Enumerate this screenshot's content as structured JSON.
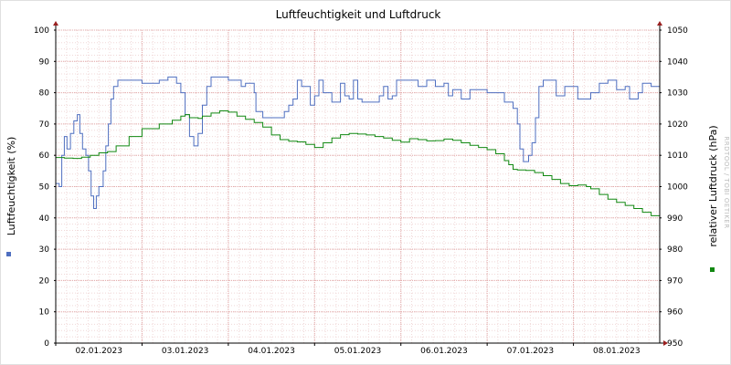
{
  "chart_data": {
    "type": "line",
    "title": "Luftfeuchtigkeit und Luftdruck",
    "watermark": "RRDTOOL / TOBI OETIKER",
    "x_ticks": [
      "02.01.2023",
      "03.01.2023",
      "04.01.2023",
      "05.01.2023",
      "06.01.2023",
      "07.01.2023",
      "08.01.2023"
    ],
    "x_range": [
      0.0,
      7.0
    ],
    "grid": true,
    "left_axis": {
      "label": "Luftfeuchtigkeit (%)",
      "range": [
        0,
        100
      ],
      "ticks": [
        "0",
        "10",
        "20",
        "30",
        "40",
        "50",
        "60",
        "70",
        "80",
        "90",
        "100"
      ]
    },
    "right_axis": {
      "label": "relativer Luftdruck (hPa)",
      "range": [
        950,
        1050
      ],
      "ticks": [
        "950",
        "960",
        "970",
        "980",
        "990",
        "1000",
        "1010",
        "1020",
        "1030",
        "1040",
        "1050"
      ]
    },
    "series": [
      {
        "axis": "left",
        "color": "#4f6fc0",
        "values": [
          [
            0.0,
            51
          ],
          [
            0.04,
            50
          ],
          [
            0.07,
            60
          ],
          [
            0.1,
            66
          ],
          [
            0.13,
            62
          ],
          [
            0.17,
            67
          ],
          [
            0.21,
            71
          ],
          [
            0.25,
            73
          ],
          [
            0.28,
            67
          ],
          [
            0.31,
            62
          ],
          [
            0.35,
            60
          ],
          [
            0.38,
            55
          ],
          [
            0.41,
            47
          ],
          [
            0.44,
            43
          ],
          [
            0.47,
            47
          ],
          [
            0.5,
            50
          ],
          [
            0.55,
            55
          ],
          [
            0.58,
            63
          ],
          [
            0.61,
            70
          ],
          [
            0.64,
            78
          ],
          [
            0.67,
            82
          ],
          [
            0.72,
            84
          ],
          [
            0.8,
            84
          ],
          [
            1.0,
            83
          ],
          [
            1.2,
            84
          ],
          [
            1.3,
            85
          ],
          [
            1.4,
            83
          ],
          [
            1.45,
            80
          ],
          [
            1.5,
            73
          ],
          [
            1.55,
            66
          ],
          [
            1.6,
            63
          ],
          [
            1.65,
            67
          ],
          [
            1.7,
            76
          ],
          [
            1.75,
            82
          ],
          [
            1.8,
            85
          ],
          [
            2.0,
            84
          ],
          [
            2.1,
            84
          ],
          [
            2.15,
            82
          ],
          [
            2.2,
            83
          ],
          [
            2.3,
            80
          ],
          [
            2.32,
            74
          ],
          [
            2.4,
            72
          ],
          [
            2.6,
            72
          ],
          [
            2.65,
            74
          ],
          [
            2.7,
            76
          ],
          [
            2.75,
            78
          ],
          [
            2.8,
            84
          ],
          [
            2.85,
            82
          ],
          [
            2.95,
            76
          ],
          [
            3.0,
            79
          ],
          [
            3.05,
            84
          ],
          [
            3.1,
            80
          ],
          [
            3.2,
            77
          ],
          [
            3.3,
            83
          ],
          [
            3.35,
            79
          ],
          [
            3.4,
            78
          ],
          [
            3.45,
            84
          ],
          [
            3.5,
            78
          ],
          [
            3.55,
            77
          ],
          [
            3.65,
            77
          ],
          [
            3.75,
            79
          ],
          [
            3.8,
            82
          ],
          [
            3.85,
            78
          ],
          [
            3.9,
            79
          ],
          [
            3.95,
            84
          ],
          [
            4.1,
            84
          ],
          [
            4.2,
            82
          ],
          [
            4.3,
            84
          ],
          [
            4.4,
            82
          ],
          [
            4.5,
            83
          ],
          [
            4.55,
            79
          ],
          [
            4.6,
            81
          ],
          [
            4.7,
            78
          ],
          [
            4.8,
            81
          ],
          [
            5.0,
            80
          ],
          [
            5.1,
            80
          ],
          [
            5.2,
            77
          ],
          [
            5.3,
            75
          ],
          [
            5.35,
            70
          ],
          [
            5.38,
            62
          ],
          [
            5.42,
            58
          ],
          [
            5.48,
            60
          ],
          [
            5.52,
            64
          ],
          [
            5.56,
            72
          ],
          [
            5.6,
            82
          ],
          [
            5.65,
            84
          ],
          [
            5.75,
            84
          ],
          [
            5.8,
            79
          ],
          [
            5.9,
            82
          ],
          [
            6.0,
            82
          ],
          [
            6.05,
            78
          ],
          [
            6.2,
            80
          ],
          [
            6.3,
            83
          ],
          [
            6.4,
            84
          ],
          [
            6.5,
            81
          ],
          [
            6.6,
            82
          ],
          [
            6.65,
            78
          ],
          [
            6.75,
            80
          ],
          [
            6.8,
            83
          ],
          [
            6.9,
            82
          ],
          [
            7.0,
            85
          ]
        ]
      },
      {
        "axis": "right",
        "color": "#118811",
        "values": [
          [
            0.0,
            1009.3
          ],
          [
            0.1,
            1009.1
          ],
          [
            0.2,
            1009.0
          ],
          [
            0.3,
            1009.4
          ],
          [
            0.4,
            1010.0
          ],
          [
            0.5,
            1010.8
          ],
          [
            0.6,
            1011.2
          ],
          [
            0.7,
            1013.0
          ],
          [
            0.85,
            1016.0
          ],
          [
            1.0,
            1018.5
          ],
          [
            1.2,
            1020.0
          ],
          [
            1.35,
            1021.2
          ],
          [
            1.45,
            1022.5
          ],
          [
            1.5,
            1023.0
          ],
          [
            1.55,
            1022.0
          ],
          [
            1.65,
            1021.8
          ],
          [
            1.7,
            1022.5
          ],
          [
            1.8,
            1023.5
          ],
          [
            1.9,
            1024.2
          ],
          [
            2.0,
            1023.8
          ],
          [
            2.1,
            1022.5
          ],
          [
            2.2,
            1021.5
          ],
          [
            2.3,
            1020.5
          ],
          [
            2.4,
            1019.0
          ],
          [
            2.5,
            1016.5
          ],
          [
            2.6,
            1015.0
          ],
          [
            2.7,
            1014.5
          ],
          [
            2.8,
            1014.3
          ],
          [
            2.9,
            1013.5
          ],
          [
            3.0,
            1012.5
          ],
          [
            3.1,
            1014.0
          ],
          [
            3.2,
            1015.5
          ],
          [
            3.3,
            1016.6
          ],
          [
            3.4,
            1017.0
          ],
          [
            3.5,
            1016.8
          ],
          [
            3.6,
            1016.5
          ],
          [
            3.7,
            1016.0
          ],
          [
            3.8,
            1015.5
          ],
          [
            3.9,
            1014.8
          ],
          [
            4.0,
            1014.2
          ],
          [
            4.1,
            1015.3
          ],
          [
            4.2,
            1015.0
          ],
          [
            4.3,
            1014.6
          ],
          [
            4.4,
            1014.7
          ],
          [
            4.5,
            1015.2
          ],
          [
            4.6,
            1014.8
          ],
          [
            4.7,
            1014.0
          ],
          [
            4.8,
            1013.2
          ],
          [
            4.9,
            1012.5
          ],
          [
            5.0,
            1011.8
          ],
          [
            5.1,
            1010.5
          ],
          [
            5.2,
            1008.3
          ],
          [
            5.25,
            1007.0
          ],
          [
            5.3,
            1005.5
          ],
          [
            5.35,
            1005.3
          ],
          [
            5.45,
            1005.2
          ],
          [
            5.55,
            1004.5
          ],
          [
            5.65,
            1003.5
          ],
          [
            5.75,
            1002.3
          ],
          [
            5.85,
            1001.0
          ],
          [
            5.95,
            1000.3
          ],
          [
            6.05,
            1000.5
          ],
          [
            6.15,
            1000.0
          ],
          [
            6.2,
            999.3
          ],
          [
            6.3,
            997.5
          ],
          [
            6.4,
            996.0
          ],
          [
            6.5,
            995.0
          ],
          [
            6.6,
            994.0
          ],
          [
            6.7,
            993.0
          ],
          [
            6.8,
            991.8
          ],
          [
            6.9,
            990.7
          ],
          [
            7.0,
            990.0
          ]
        ]
      }
    ]
  }
}
